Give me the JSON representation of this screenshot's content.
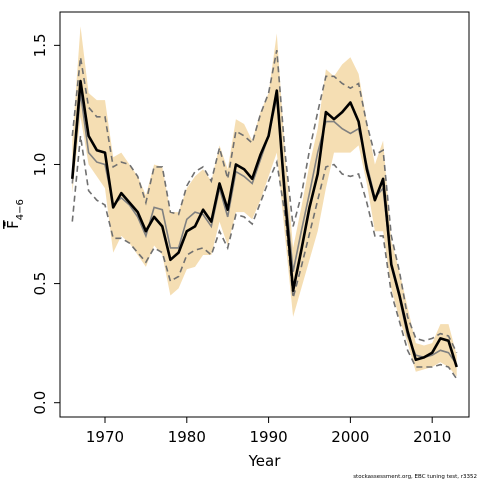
{
  "chart_data": {
    "type": "line",
    "xlabel": "Year",
    "ylabel": "F̄",
    "ylabel_subscript": "4−6",
    "footnote": "stockassessment.org, EBC tuning test, r3352",
    "xlim": [
      1964.5,
      2014.5
    ],
    "ylim": [
      -0.06,
      1.64
    ],
    "x_ticks": [
      1970,
      1980,
      1990,
      2000,
      2010
    ],
    "x_tick_labels": [
      "1970",
      "1980",
      "1990",
      "2000",
      "2010"
    ],
    "y_ticks": [
      0.0,
      0.5,
      1.0,
      1.5
    ],
    "y_tick_labels": [
      "0.0",
      "0.5",
      "1.0",
      "1.5"
    ],
    "grid": false,
    "colors": {
      "band": "#f5deb3",
      "estimate": "#000000",
      "comparison": "#808080",
      "comparison_ci": "#707070"
    },
    "x": [
      1966,
      1967,
      1968,
      1969,
      1970,
      1971,
      1972,
      1973,
      1974,
      1975,
      1976,
      1977,
      1978,
      1979,
      1980,
      1981,
      1982,
      1983,
      1984,
      1985,
      1986,
      1987,
      1988,
      1989,
      1990,
      1991,
      1992,
      1993,
      1994,
      1995,
      1996,
      1997,
      1998,
      1999,
      2000,
      2001,
      2002,
      2003,
      2004,
      2005,
      2006,
      2007,
      2008,
      2009,
      2010,
      2011,
      2012,
      2013
    ],
    "series": [
      {
        "role": "confidence-band",
        "lower": [
          0.88,
          1.2,
          1.0,
          0.95,
          0.9,
          0.63,
          0.7,
          0.67,
          0.62,
          0.57,
          0.66,
          0.62,
          0.45,
          0.48,
          0.56,
          0.57,
          0.62,
          0.62,
          0.76,
          0.66,
          0.8,
          0.8,
          0.77,
          0.85,
          0.95,
          1.05,
          0.7,
          0.36,
          0.48,
          0.6,
          0.72,
          0.9,
          1.05,
          1.05,
          1.05,
          1.08,
          0.92,
          0.72,
          0.72,
          0.48,
          0.35,
          0.25,
          0.13,
          0.14,
          0.15,
          0.17,
          0.15,
          0.11
        ],
        "upper": [
          1.1,
          1.58,
          1.3,
          1.27,
          1.27,
          1.03,
          1.05,
          1.0,
          0.95,
          0.87,
          1.0,
          0.99,
          0.8,
          0.8,
          0.9,
          0.95,
          0.98,
          0.93,
          1.08,
          0.98,
          1.19,
          1.17,
          1.1,
          1.22,
          1.3,
          1.55,
          1.05,
          0.65,
          0.82,
          1.0,
          1.15,
          1.4,
          1.37,
          1.42,
          1.45,
          1.38,
          1.18,
          1.0,
          1.1,
          0.68,
          0.55,
          0.4,
          0.25,
          0.24,
          0.25,
          0.33,
          0.33,
          0.2
        ]
      },
      {
        "role": "estimate",
        "values": [
          0.94,
          1.35,
          1.12,
          1.06,
          1.05,
          0.82,
          0.88,
          0.84,
          0.8,
          0.72,
          0.78,
          0.74,
          0.6,
          0.63,
          0.72,
          0.74,
          0.81,
          0.76,
          0.92,
          0.81,
          1.0,
          0.98,
          0.94,
          1.04,
          1.12,
          1.31,
          0.86,
          0.47,
          0.64,
          0.82,
          0.96,
          1.22,
          1.19,
          1.22,
          1.26,
          1.18,
          0.98,
          0.85,
          0.94,
          0.58,
          0.45,
          0.3,
          0.18,
          0.19,
          0.21,
          0.27,
          0.26,
          0.15
        ]
      },
      {
        "role": "comparison",
        "values": [
          0.92,
          1.3,
          1.05,
          1.01,
          1.0,
          0.83,
          0.86,
          0.83,
          0.78,
          0.7,
          0.82,
          0.81,
          0.65,
          0.65,
          0.77,
          0.8,
          0.79,
          0.74,
          0.9,
          0.78,
          0.97,
          0.95,
          0.92,
          1.02,
          1.12,
          1.28,
          0.9,
          0.55,
          0.72,
          0.88,
          1.05,
          1.18,
          1.18,
          1.15,
          1.13,
          1.15,
          1.0,
          0.86,
          0.9,
          0.58,
          0.44,
          0.28,
          0.2,
          0.19,
          0.2,
          0.22,
          0.21,
          0.16
        ]
      },
      {
        "role": "comparison-ci",
        "lower": [
          0.76,
          1.12,
          0.89,
          0.85,
          0.83,
          0.69,
          0.69,
          0.67,
          0.63,
          0.59,
          0.65,
          0.63,
          0.51,
          0.53,
          0.62,
          0.64,
          0.65,
          0.62,
          0.72,
          0.65,
          0.79,
          0.78,
          0.75,
          0.84,
          0.93,
          1.01,
          0.79,
          0.44,
          0.57,
          0.71,
          0.85,
          0.99,
          1.0,
          0.96,
          0.95,
          0.96,
          0.84,
          0.7,
          0.7,
          0.46,
          0.34,
          0.22,
          0.15,
          0.15,
          0.15,
          0.16,
          0.15,
          0.1
        ],
        "upper": [
          1.12,
          1.45,
          1.24,
          1.2,
          1.2,
          0.99,
          1.01,
          1.0,
          0.95,
          0.84,
          0.99,
          0.99,
          0.8,
          0.79,
          0.91,
          0.97,
          0.99,
          0.93,
          1.07,
          0.94,
          1.14,
          1.12,
          1.09,
          1.21,
          1.3,
          1.48,
          1.05,
          0.74,
          0.87,
          1.06,
          1.22,
          1.37,
          1.37,
          1.34,
          1.32,
          1.34,
          1.17,
          1.04,
          1.06,
          0.7,
          0.55,
          0.36,
          0.27,
          0.26,
          0.27,
          0.29,
          0.28,
          0.21
        ]
      }
    ]
  }
}
